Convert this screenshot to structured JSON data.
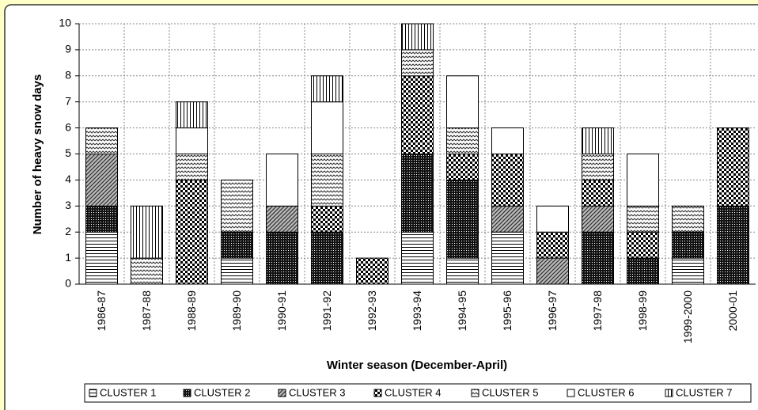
{
  "chart_data": {
    "type": "stacked_bar",
    "x_label": "Winter season (December-April)",
    "y_label": "Number of heavy snow days",
    "categories": [
      "1986-87",
      "1987-88",
      "1988-89",
      "1989-90",
      "1990-91",
      "1991-92",
      "1992-93",
      "1993-94",
      "1994-95",
      "1995-96",
      "1996-97",
      "1997-98",
      "1998-99",
      "1999-2000",
      "2000-01"
    ],
    "series": [
      {
        "name": "CLUSTER 1",
        "pattern": "horizontal",
        "values": [
          2,
          0,
          0,
          1,
          0,
          0,
          0,
          2,
          1,
          2,
          0,
          0,
          0,
          1,
          0
        ]
      },
      {
        "name": "CLUSTER 2",
        "pattern": "dense-dots",
        "values": [
          1,
          0,
          0,
          1,
          2,
          2,
          0,
          3,
          3,
          0,
          0,
          2,
          1,
          1,
          3
        ]
      },
      {
        "name": "CLUSTER 3",
        "pattern": "diagonal",
        "values": [
          2,
          0,
          0,
          0,
          1,
          0,
          0,
          0,
          0,
          1,
          1,
          1,
          0,
          0,
          0
        ]
      },
      {
        "name": "CLUSTER 4",
        "pattern": "checker",
        "values": [
          0,
          0,
          4,
          0,
          0,
          1,
          1,
          3,
          1,
          2,
          1,
          1,
          1,
          0,
          3
        ]
      },
      {
        "name": "CLUSTER 5",
        "pattern": "wave",
        "values": [
          1,
          1,
          1,
          2,
          0,
          2,
          0,
          1,
          1,
          0,
          0,
          1,
          1,
          1,
          0
        ]
      },
      {
        "name": "CLUSTER 6",
        "pattern": "blank",
        "values": [
          0,
          0,
          1,
          0,
          2,
          2,
          0,
          0,
          2,
          1,
          1,
          0,
          2,
          0,
          0
        ]
      },
      {
        "name": "CLUSTER 7",
        "pattern": "vertical",
        "values": [
          0,
          2,
          1,
          0,
          0,
          1,
          0,
          1,
          0,
          0,
          0,
          1,
          0,
          0,
          0
        ]
      }
    ],
    "ylim": [
      0,
      10
    ],
    "yticks": [
      0,
      1,
      2,
      3,
      4,
      5,
      6,
      7,
      8,
      9,
      10
    ],
    "grid": true,
    "legend": "bottom"
  }
}
